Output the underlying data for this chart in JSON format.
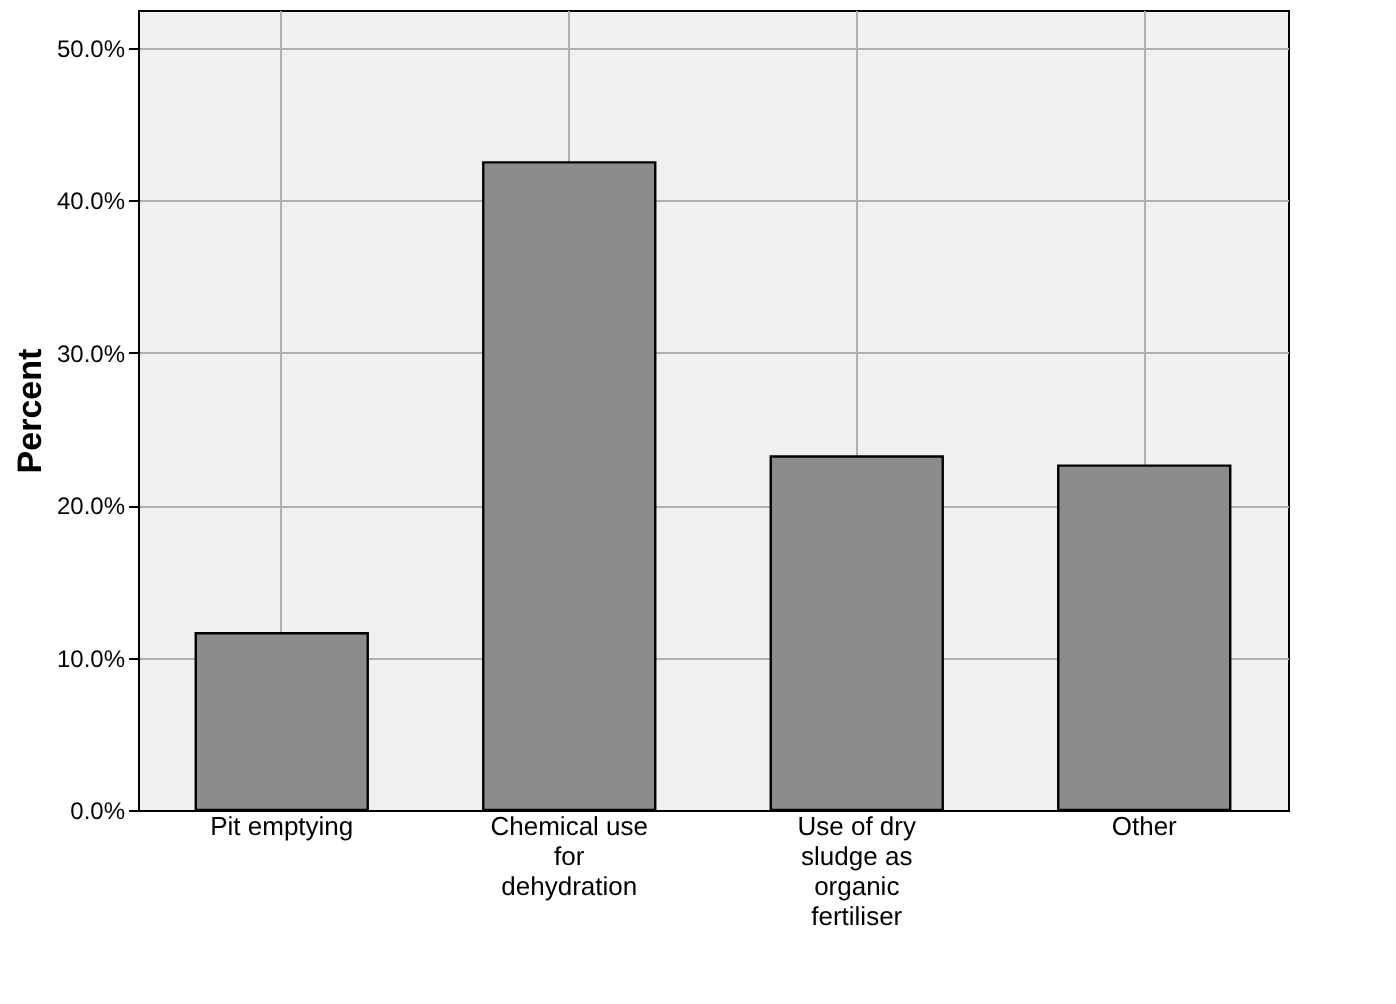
{
  "chart_data": {
    "type": "bar",
    "ylabel": "Percent",
    "categories": [
      "Pit emptying",
      "Chemical use for dehydration",
      "Use of dry sludge as organic fertiliser",
      "Other"
    ],
    "values": [
      11.6,
      42.5,
      23.2,
      22.6
    ],
    "color": "#8c8c8c",
    "ylim": [
      0,
      52.5
    ],
    "yticks": [
      {
        "value": 0,
        "label": "0.0%"
      },
      {
        "value": 10,
        "label": "10.0%"
      },
      {
        "value": 20,
        "label": "20.0%"
      },
      {
        "value": 30,
        "label": "30.0%"
      },
      {
        "value": 40,
        "label": "40.0%"
      },
      {
        "value": 50,
        "label": "50.0%"
      }
    ],
    "grid": true
  }
}
